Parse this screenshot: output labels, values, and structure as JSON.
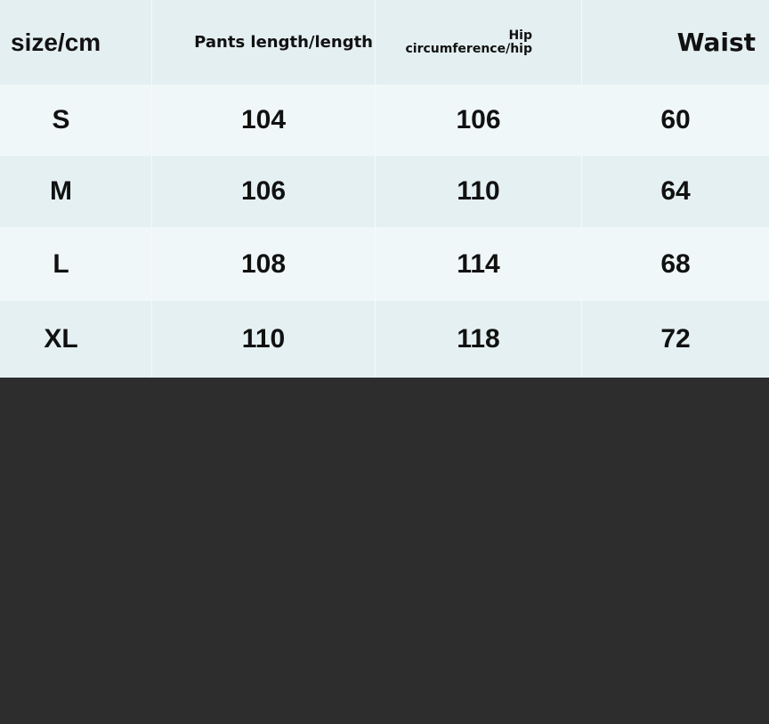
{
  "headers": {
    "size": "size/cm",
    "pants_length": "Pants length/length",
    "hip_line1": "Hip",
    "hip_line2": "circumference/hip",
    "waist": "Waist"
  },
  "rows": [
    {
      "size": "S",
      "pants_length": "104",
      "hip": "106",
      "waist": "60"
    },
    {
      "size": "M",
      "pants_length": "106",
      "hip": "110",
      "waist": "64"
    },
    {
      "size": "L",
      "pants_length": "108",
      "hip": "114",
      "waist": "68"
    },
    {
      "size": "XL",
      "pants_length": "110",
      "hip": "118",
      "waist": "72"
    }
  ],
  "colors": {
    "header_bg": "#e4eff1",
    "row_light": "#f0f7f8",
    "row_dark": "#e5f0f2",
    "background": "#2d2d2d"
  }
}
